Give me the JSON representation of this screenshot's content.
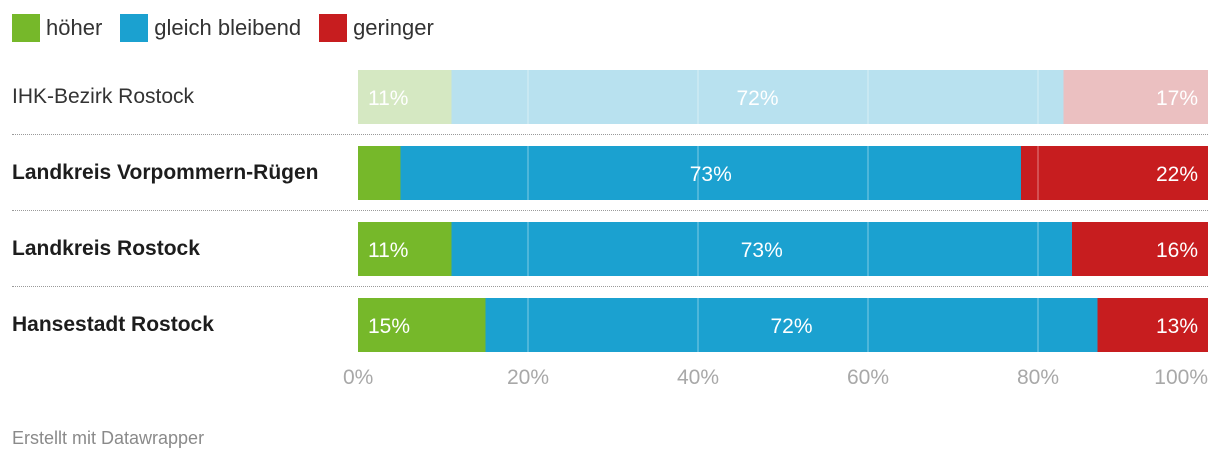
{
  "legend": {
    "hoeher": {
      "label": "höher",
      "color": "#76b82a"
    },
    "gleich": {
      "label": "gleich bleibend",
      "color": "#1ba1d0"
    },
    "geringer": {
      "label": "geringer",
      "color": "#c71d1f"
    }
  },
  "chart_data": {
    "type": "bar",
    "orientation": "horizontal-stacked-100",
    "categories": [
      "IHK-Bezirk Rostock",
      "Landkreis Vorpommern-Rügen",
      "Landkreis Rostock",
      "Hansestadt Rostock"
    ],
    "highlight": [
      false,
      true,
      true,
      true
    ],
    "series": [
      {
        "name": "höher",
        "values": [
          11,
          5,
          11,
          15
        ],
        "labels": [
          "11%",
          "",
          "11%",
          "15%"
        ]
      },
      {
        "name": "gleich bleibend",
        "values": [
          72,
          73,
          73,
          72
        ],
        "labels": [
          "72%",
          "73%",
          "73%",
          "72%"
        ]
      },
      {
        "name": "geringer",
        "values": [
          17,
          22,
          16,
          13
        ],
        "labels": [
          "17%",
          "22%",
          "16%",
          "13%"
        ]
      }
    ],
    "xlim": [
      0,
      100
    ],
    "xticks": [
      "0%",
      "20%",
      "40%",
      "60%",
      "80%",
      "100%"
    ]
  },
  "footer": "Erstellt mit Datawrapper"
}
